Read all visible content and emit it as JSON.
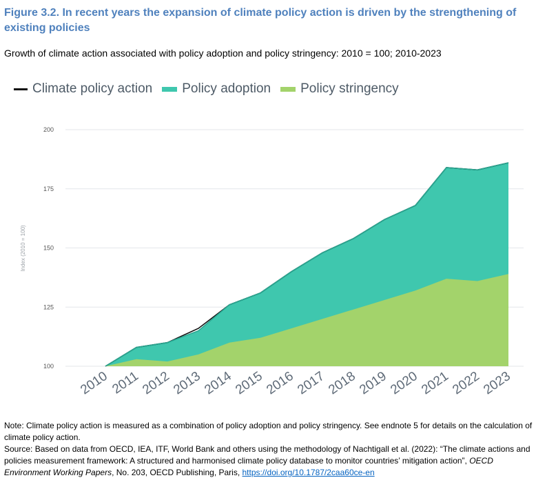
{
  "figure": {
    "title": "Figure 3.2. In recent years the expansion of climate policy action is driven by the strengthening of existing policies",
    "subtitle": "Growth of climate action associated with policy adoption and policy stringency: 2010 = 100; 2010-2023"
  },
  "legend": [
    {
      "label": "Climate policy action",
      "color": "#111111",
      "kind": "line"
    },
    {
      "label": "Policy adoption",
      "color": "#3fc7ae",
      "kind": "area"
    },
    {
      "label": "Policy stringency",
      "color": "#a3d36b",
      "kind": "area"
    }
  ],
  "chart_data": {
    "type": "area",
    "x": [
      "2010",
      "2011",
      "2012",
      "2013",
      "2014",
      "2015",
      "2016",
      "2017",
      "2018",
      "2019",
      "2020",
      "2021",
      "2022",
      "2023"
    ],
    "series": [
      {
        "name": "Climate policy action",
        "values": [
          100,
          108,
          110,
          116,
          126,
          131,
          140,
          148,
          154,
          162,
          168,
          184,
          183,
          186
        ],
        "color": "#111111"
      },
      {
        "name": "Policy adoption",
        "values": [
          100,
          108,
          110,
          115,
          126,
          131,
          140,
          148,
          154,
          162,
          168,
          184,
          183,
          186
        ],
        "color": "#3fc7ae"
      },
      {
        "name": "Policy stringency",
        "values": [
          100,
          103,
          102,
          105,
          110,
          112,
          116,
          120,
          124,
          128,
          132,
          137,
          136,
          139
        ],
        "color": "#a3d36b"
      }
    ],
    "ylabel": "Index (2010 = 100)",
    "xlabel": "",
    "ylim": [
      100,
      200
    ],
    "yticks": [
      100,
      125,
      150,
      175,
      200
    ],
    "grid": true,
    "legend_position": "top-left"
  },
  "notes": {
    "note": "Note: Climate policy action is measured as a combination of policy adoption and policy stringency. See endnote 5 for details on the calculation of climate policy action.",
    "source_text": "Source: Based on data from OECD, IEA, ITF, World Bank and others using the methodology of Nachtigall et al. (2022): “The climate actions and policies measurement framework: A structured and harmonised climate policy database to monitor countries’ mitigation action”, ",
    "source_italic": "OECD Environment Working Papers",
    "source_tail": ", No. 203, OECD Publishing, Paris, ",
    "source_link": "https://doi.org/10.1787/2caa60ce-en"
  }
}
